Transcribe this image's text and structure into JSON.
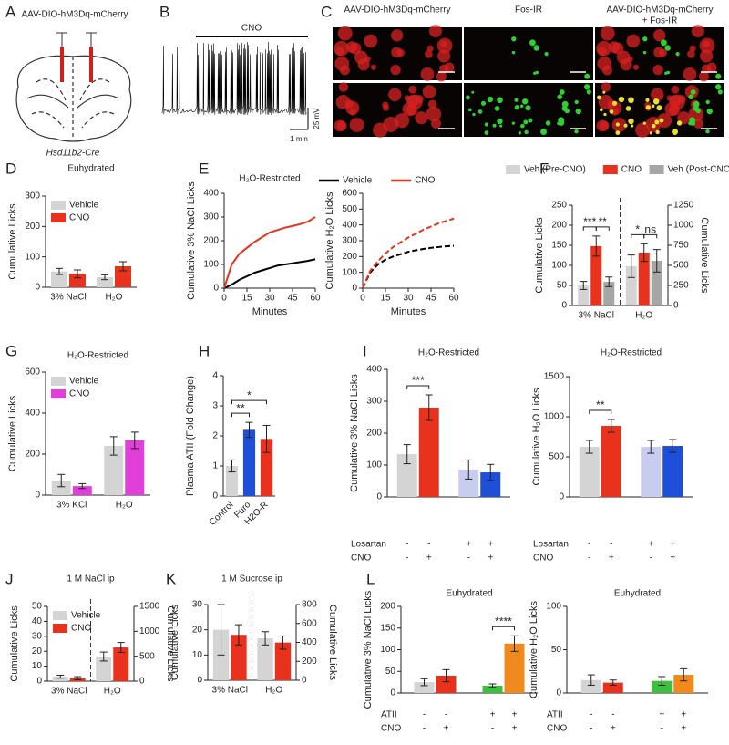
{
  "panel_a": {
    "letter": "A",
    "construct": "AAV-DIO-hM3Dq-mCherry",
    "mouse": "Hsd11b2-Cre"
  },
  "panel_b": {
    "letter": "B",
    "drug": "CNO",
    "voltage_scale": "25 mV",
    "time_scale": "1 min"
  },
  "panel_c": {
    "letter": "C",
    "labels": [
      [
        "AAV-DIO-hM3Dq-mCherry"
      ],
      [
        "Fos-IR"
      ],
      [
        "AAV-DIO-hM3Dq-mCherry",
        "+ Fos-IR"
      ]
    ]
  },
  "chart_data": [
    {
      "type": "bar",
      "panel": "D",
      "title": "Euhydrated",
      "ylabel": "Cumulative Licks",
      "categories": [
        "3% NaCl",
        "H₂O"
      ],
      "series": [
        {
          "name": "Vehicle",
          "color": "#d4d4d4",
          "values": [
            52,
            33
          ],
          "errors": [
            10,
            8
          ]
        },
        {
          "name": "CNO",
          "color": "#e8321e",
          "values": [
            44,
            69
          ],
          "errors": [
            13,
            15
          ]
        }
      ],
      "ylim": [
        0,
        300
      ],
      "yticks": [
        0,
        100,
        200,
        300
      ],
      "legend": "upper left"
    },
    {
      "type": "line",
      "panel": "E",
      "title": "H₂O-Restricted",
      "ylabel": "Cumulative 3% NaCl Licks",
      "xlabel": "Minutes",
      "x": [
        0,
        5,
        10,
        15,
        20,
        25,
        30,
        35,
        40,
        45,
        50,
        55,
        60
      ],
      "series": [
        {
          "color": "#000000",
          "values": [
            0,
            15,
            35,
            50,
            65,
            75,
            85,
            95,
            100,
            105,
            110,
            115,
            122
          ]
        },
        {
          "color": "#e8321e",
          "values": [
            0,
            100,
            145,
            170,
            195,
            215,
            235,
            245,
            255,
            262,
            270,
            280,
            300
          ]
        }
      ],
      "xlim": [
        0,
        60
      ],
      "xticks": [
        0,
        15,
        30,
        45,
        60
      ],
      "ylim": [
        0,
        400
      ],
      "yticks": [
        0,
        100,
        200,
        300,
        400
      ]
    },
    {
      "type": "line",
      "ylabel": "Cumulative H₂O Licks",
      "xlabel": "Minutes",
      "dashed": true,
      "x": [
        0,
        5,
        10,
        15,
        20,
        25,
        30,
        35,
        40,
        45,
        50,
        55,
        60
      ],
      "series": [
        {
          "name": "Vehicle",
          "color": "#000000",
          "values": [
            0,
            100,
            150,
            180,
            200,
            215,
            230,
            240,
            248,
            255,
            260,
            265,
            268
          ]
        },
        {
          "name": "CNO",
          "color": "#e8321e",
          "values": [
            0,
            110,
            170,
            220,
            260,
            290,
            320,
            345,
            370,
            390,
            410,
            425,
            440
          ]
        }
      ],
      "xlim": [
        0,
        60
      ],
      "xticks": [
        0,
        15,
        30,
        45,
        60
      ],
      "ylim": [
        0,
        600
      ],
      "yticks": [
        0,
        100,
        200,
        300,
        400,
        500,
        600
      ],
      "legend": "top"
    },
    {
      "type": "bar",
      "panel": "F",
      "ylabel": "Cumulative Licks",
      "y2label": "Cumulative Licks",
      "categories": [
        "3% NaCl",
        "H₂O"
      ],
      "divider": true,
      "legend": "top",
      "series": [
        {
          "name": "Veh (Pre-CNO)",
          "color": "#d4d4d4",
          "values": [
            50,
            null
          ],
          "errors": [
            10,
            null
          ]
        },
        {
          "name": "CNO",
          "color": "#e8321e",
          "values": [
            148,
            null
          ],
          "errors": [
            25,
            null
          ]
        },
        {
          "name": "Veh (Post-CNO)",
          "color": "#a6a6a6",
          "values": [
            59,
            null
          ],
          "errors": [
            12,
            null
          ]
        },
        {
          "color": "#d4d4d4",
          "axis": "y2",
          "values": [
            null,
            489
          ],
          "errors": [
            null,
            140
          ]
        },
        {
          "color": "#e8321e",
          "axis": "y2",
          "values": [
            null,
            659
          ],
          "errors": [
            null,
            110
          ]
        },
        {
          "color": "#a6a6a6",
          "axis": "y2",
          "values": [
            null,
            557
          ],
          "errors": [
            null,
            140
          ]
        }
      ],
      "ylim": [
        0,
        250
      ],
      "yticks": [
        0,
        50,
        100,
        150,
        200,
        250
      ],
      "y2lim": [
        0,
        1250
      ],
      "y2ticks": [
        0,
        250,
        500,
        750,
        1000,
        1250
      ],
      "annotations": [
        {
          "text": "***",
          "between": [
            [
              0,
              0
            ],
            [
              1,
              0
            ]
          ]
        },
        {
          "text": "**",
          "between": [
            [
              1,
              0
            ],
            [
              2,
              0
            ]
          ]
        },
        {
          "text": "*",
          "between": [
            [
              3,
              1
            ],
            [
              4,
              1
            ]
          ]
        },
        {
          "text": "ns",
          "between": [
            [
              4,
              1
            ],
            [
              5,
              1
            ]
          ]
        }
      ]
    },
    {
      "type": "bar",
      "panel": "G",
      "title": "H₂O-Restricted",
      "ylabel": "Cumulative Licks",
      "categories": [
        "3% KCl",
        "H₂O"
      ],
      "series": [
        {
          "name": "Vehicle",
          "color": "#d4d4d4",
          "values": [
            71,
            240
          ],
          "errors": [
            30,
            45
          ]
        },
        {
          "name": "CNO",
          "color": "#e040d8",
          "values": [
            44,
            267
          ],
          "errors": [
            12,
            40
          ]
        }
      ],
      "ylim": [
        0,
        600
      ],
      "yticks": [
        0,
        200,
        400,
        600
      ],
      "legend": "upper left"
    },
    {
      "type": "bar",
      "panel": "H",
      "ylabel": "Plasma ATII (Fold Change)",
      "categories": [
        "Control",
        "Furo",
        "H2O-R"
      ],
      "series": [
        {
          "colors": [
            "#d4d4d4",
            "#1f4fd8",
            "#e8321e"
          ],
          "values": [
            1.0,
            2.2,
            1.9
          ],
          "errors": [
            0.2,
            0.25,
            0.45
          ]
        }
      ],
      "ylim": [
        0,
        4
      ],
      "yticks": [
        0,
        1,
        2,
        3,
        4
      ],
      "annotations": [
        {
          "text": "**",
          "between": [
            [
              0,
              0
            ],
            [
              0,
              1
            ]
          ]
        },
        {
          "text": "*",
          "between": [
            [
              0,
              0
            ],
            [
              0,
              2
            ]
          ]
        }
      ]
    },
    {
      "type": "bar",
      "panel": "I",
      "title": "H₂O-Restricted",
      "ylabel": "Cumulative 3% NaCl Licks",
      "categories": [
        null,
        null
      ],
      "series": [
        {
          "colors": [
            "#d4d4d4",
            "#c8cdf0"
          ],
          "values": [
            134,
            86
          ],
          "errors": [
            30,
            30
          ]
        },
        {
          "colors": [
            "#e8321e",
            "#1f4fd8"
          ],
          "values": [
            280,
            77
          ],
          "errors": [
            40,
            25
          ]
        }
      ],
      "ylim": [
        0,
        400
      ],
      "yticks": [
        0,
        100,
        200,
        300,
        400
      ],
      "annotations": [
        {
          "text": "***",
          "between": [
            [
              0,
              0
            ],
            [
              1,
              0
            ]
          ]
        }
      ],
      "conditions": [
        {
          "label": "Losartan",
          "marks": [
            "-",
            "-",
            "+",
            "+"
          ]
        },
        {
          "label": "CNO",
          "marks": [
            "-",
            "+",
            "-",
            "+"
          ]
        }
      ]
    },
    {
      "type": "bar",
      "title": "H₂O-Restricted",
      "ylabel": "Cumulative H₂O Licks",
      "categories": [
        null,
        null
      ],
      "series": [
        {
          "colors": [
            "#d4d4d4",
            "#c8cdf0"
          ],
          "values": [
            625,
            625
          ],
          "errors": [
            80,
            80
          ]
        },
        {
          "colors": [
            "#e8321e",
            "#1f4fd8"
          ],
          "values": [
            886,
            636
          ],
          "errors": [
            80,
            80
          ]
        }
      ],
      "ylim": [
        0,
        1500
      ],
      "yticks": [
        0,
        500,
        1000,
        1500
      ],
      "annotations": [
        {
          "text": "**",
          "between": [
            [
              0,
              0
            ],
            [
              1,
              0
            ]
          ]
        }
      ],
      "conditions": [
        {
          "label": "Losartan",
          "marks": [
            "-",
            "-",
            "+",
            "+"
          ]
        },
        {
          "label": "CNO",
          "marks": [
            "-",
            "+",
            "-",
            "+"
          ]
        }
      ]
    },
    {
      "type": "bar",
      "panel": "J",
      "title": "1 M NaCl ip",
      "ylabel": "Cumulative Licks",
      "y2label": "Cumulative Licks",
      "categories": [
        "3% NaCl",
        "H₂O"
      ],
      "divider": true,
      "legend": "upper left",
      "series": [
        {
          "name": "Vehicle",
          "color": "#d4d4d4",
          "values": [
            3,
            null
          ],
          "errors": [
            1,
            null
          ]
        },
        {
          "name": "CNO",
          "color": "#e8321e",
          "values": [
            2,
            null
          ],
          "errors": [
            1,
            null
          ]
        },
        {
          "color": "#d4d4d4",
          "axis": "y2",
          "values": [
            null,
            494
          ],
          "errors": [
            null,
            90
          ]
        },
        {
          "color": "#e8321e",
          "axis": "y2",
          "values": [
            null,
            676
          ],
          "errors": [
            null,
            100
          ]
        }
      ],
      "ylim": [
        0,
        50
      ],
      "yticks": [
        0,
        10,
        20,
        30,
        40,
        50
      ],
      "y2lim": [
        0,
        1500
      ],
      "y2ticks": [
        0,
        500,
        1000,
        1500
      ]
    },
    {
      "type": "bar",
      "panel": "K",
      "title": "1 M Sucrose ip",
      "ylabel": "Cumulative Licks",
      "y2label": "Cumulative Licks",
      "categories": [
        "3% NaCl",
        "H₂O"
      ],
      "divider": true,
      "series": [
        {
          "color": "#d4d4d4",
          "values": [
            20,
            null
          ],
          "errors": [
            10,
            null
          ]
        },
        {
          "color": "#e8321e",
          "values": [
            18,
            null
          ],
          "errors": [
            4,
            null
          ]
        },
        {
          "color": "#d4d4d4",
          "axis": "y2",
          "values": [
            null,
            443
          ],
          "errors": [
            null,
            70
          ]
        },
        {
          "color": "#e8321e",
          "axis": "y2",
          "values": [
            null,
            398
          ],
          "errors": [
            null,
            70
          ]
        }
      ],
      "ylim": [
        0,
        30
      ],
      "yticks": [
        0,
        10,
        20,
        30
      ],
      "y2lim": [
        0,
        800
      ],
      "y2ticks": [
        0,
        200,
        400,
        600,
        800
      ]
    },
    {
      "type": "bar",
      "panel": "L",
      "title": "Euhydrated",
      "ylabel": "Cumulative 3% NaCl Licks",
      "categories": [
        null,
        null
      ],
      "series": [
        {
          "colors": [
            "#d4d4d4",
            "#3fbf3f"
          ],
          "values": [
            25,
            17
          ],
          "errors": [
            8,
            4
          ]
        },
        {
          "colors": [
            "#e8321e",
            "#f08a1d"
          ],
          "values": [
            40,
            114
          ],
          "errors": [
            14,
            18
          ]
        }
      ],
      "ylim": [
        0,
        200
      ],
      "yticks": [
        0,
        50,
        100,
        150,
        200
      ],
      "annotations": [
        {
          "text": "****",
          "between": [
            [
              0,
              1
            ],
            [
              1,
              1
            ]
          ]
        }
      ],
      "conditions": [
        {
          "label": "ATII",
          "marks": [
            "-",
            "-",
            "+",
            "+"
          ]
        },
        {
          "label": "CNO",
          "marks": [
            "-",
            "+",
            "-",
            "+"
          ]
        }
      ]
    },
    {
      "type": "bar",
      "title": "Euhydrated",
      "ylabel": "Cumulative H₂O Licks",
      "categories": [
        null,
        null
      ],
      "series": [
        {
          "colors": [
            "#d4d4d4",
            "#3fbf3f"
          ],
          "values": [
            15,
            14
          ],
          "errors": [
            6,
            5
          ]
        },
        {
          "colors": [
            "#e8321e",
            "#f08a1d"
          ],
          "values": [
            12,
            21
          ],
          "errors": [
            3,
            7
          ]
        }
      ],
      "ylim": [
        0,
        100
      ],
      "yticks": [
        0,
        50,
        100
      ],
      "conditions": [
        {
          "label": "ATII",
          "marks": [
            "-",
            "-",
            "+",
            "+"
          ]
        },
        {
          "label": "CNO",
          "marks": [
            "-",
            "+",
            "-",
            "+"
          ]
        }
      ]
    }
  ]
}
